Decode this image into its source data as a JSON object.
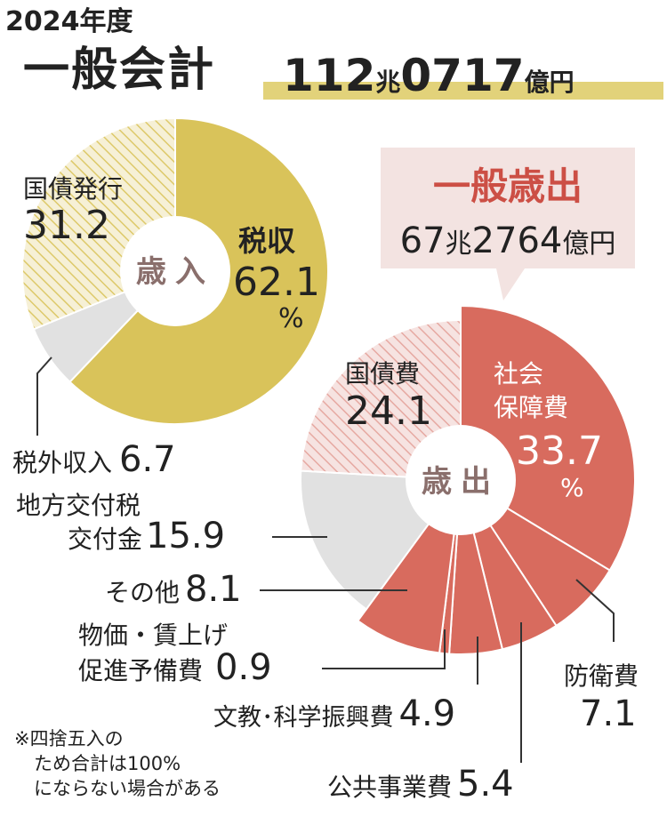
{
  "header": {
    "year": "2024年度",
    "title": "一般会計",
    "total_num": "112",
    "total_unit1": "兆",
    "total_num2": "0717",
    "total_unit2": "億円"
  },
  "colors": {
    "gold": "#d9c35a",
    "coral": "#d86b5e",
    "gray_fill": "#e1e1e1",
    "hatch_gold_bg": "#f6f0d6",
    "hatch_coral_bg": "#f6e3e1",
    "center_text": "#8a6f6c",
    "callout_bg": "#f3e3e1",
    "callout_title": "#cc4f45",
    "underline": "#e2d27a"
  },
  "chart_data": [
    {
      "type": "pie",
      "center_label": "歳入",
      "unit": "%",
      "slices": [
        {
          "name": "税収",
          "value": 62.1,
          "style": "solid-gold"
        },
        {
          "name": "税外収入",
          "value": 6.7,
          "style": "gray"
        },
        {
          "name": "国債発行",
          "value": 31.2,
          "style": "hatch-gold"
        }
      ]
    },
    {
      "type": "pie",
      "center_label": "歳出",
      "unit": "%",
      "slices": [
        {
          "name": "社会保障費",
          "value": 33.7,
          "style": "solid-coral"
        },
        {
          "name": "防衛費",
          "value": 7.1,
          "style": "solid-coral"
        },
        {
          "name": "公共事業費",
          "value": 5.4,
          "style": "solid-coral"
        },
        {
          "name": "文教・科学振興費",
          "value": 4.9,
          "style": "solid-coral"
        },
        {
          "name": "物価・賃上げ促進予備費",
          "value": 0.9,
          "style": "solid-coral"
        },
        {
          "name": "その他",
          "value": 8.1,
          "style": "solid-coral"
        },
        {
          "name": "地方交付税交付金",
          "value": 15.9,
          "style": "gray"
        },
        {
          "name": "国債費",
          "value": 24.1,
          "style": "hatch-coral"
        }
      ],
      "callout": {
        "title": "一般歳出",
        "value_num": "67",
        "value_unit1": "兆",
        "value_num2": "2764",
        "value_unit2": "億円"
      }
    }
  ],
  "labels": {
    "rev_tax_name": "税収",
    "rev_tax_value": "62.1",
    "rev_tax_pct": "%",
    "rev_bond_name": "国債発行",
    "rev_bond_value": "31.2",
    "rev_nontax_name": "税外収入",
    "rev_nontax_value": "6.7",
    "exp_ss_name1": "社会",
    "exp_ss_name2": "保障費",
    "exp_ss_value": "33.7",
    "exp_ss_pct": "%",
    "exp_debt_name": "国債費",
    "exp_debt_value": "24.1",
    "exp_local_name1": "地方交付税",
    "exp_local_name2": "交付金",
    "exp_local_value": "15.9",
    "exp_other_name": "その他",
    "exp_other_value": "8.1",
    "exp_reserve_name1": "物価・賃上げ",
    "exp_reserve_name2": "促進予備費",
    "exp_reserve_value": "0.9",
    "exp_edu_name": "文教･科学振興費",
    "exp_edu_value": "4.9",
    "exp_public_name": "公共事業費",
    "exp_public_value": "5.4",
    "exp_defense_name": "防衛費",
    "exp_defense_value": "7.1"
  },
  "footnote": [
    "※四捨五入の",
    "ため合計は100%",
    "にならない場合がある"
  ]
}
